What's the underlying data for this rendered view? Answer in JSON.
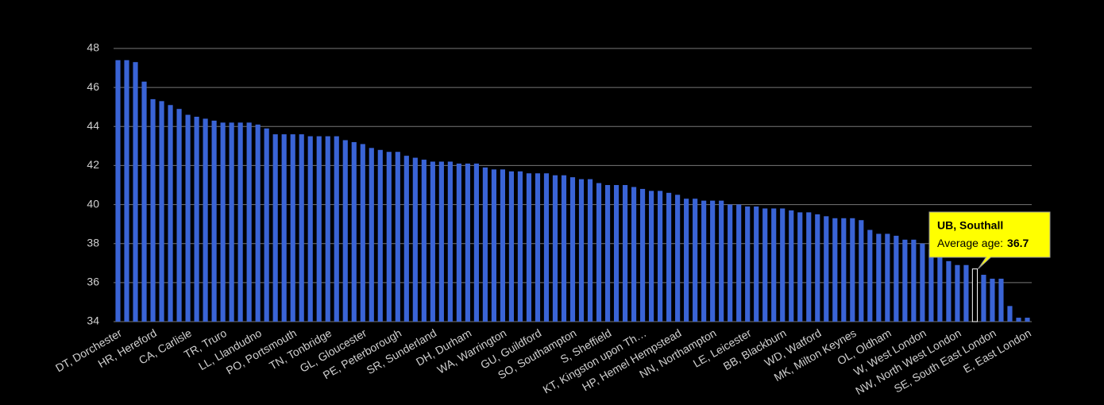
{
  "chart_data": {
    "type": "bar",
    "categories": [
      "DT, Dorchester",
      null,
      null,
      null,
      "HR, Hereford",
      null,
      null,
      null,
      "CA, Carlisle",
      null,
      null,
      null,
      "TR, Truro",
      null,
      null,
      null,
      "LL, Llandudno",
      null,
      null,
      null,
      "PO, Portsmouth",
      null,
      null,
      null,
      "TN, Tonbridge",
      null,
      null,
      null,
      "GL, Gloucester",
      null,
      null,
      null,
      "PE, Peterborough",
      null,
      null,
      null,
      "SR, Sunderland",
      null,
      null,
      null,
      "DH, Durham",
      null,
      null,
      null,
      "WA, Warrington",
      null,
      null,
      null,
      "GU, Guildford",
      null,
      null,
      null,
      "SO, Southampton",
      null,
      null,
      null,
      "S, Sheffield",
      null,
      null,
      null,
      "KT, Kingston upon Th…",
      null,
      null,
      null,
      "HP, Hemel Hempstead",
      null,
      null,
      null,
      "NN, Northampton",
      null,
      null,
      null,
      "LE, Leicester",
      null,
      null,
      null,
      "BB, Blackburn",
      null,
      null,
      null,
      "WD, Watford",
      null,
      null,
      null,
      "MK, Milton Keynes",
      null,
      null,
      null,
      "OL, Oldham",
      null,
      null,
      null,
      "W, West London",
      null,
      null,
      null,
      "NW, North West London",
      null,
      null,
      null,
      "SE, South East London",
      null,
      null,
      null,
      "E, East London"
    ],
    "values": [
      47.4,
      47.4,
      47.3,
      46.3,
      45.4,
      45.3,
      45.1,
      44.9,
      44.6,
      44.5,
      44.4,
      44.3,
      44.2,
      44.2,
      44.2,
      44.2,
      44.1,
      43.9,
      43.6,
      43.6,
      43.6,
      43.6,
      43.5,
      43.5,
      43.5,
      43.5,
      43.3,
      43.2,
      43.1,
      42.9,
      42.8,
      42.7,
      42.7,
      42.5,
      42.4,
      42.3,
      42.2,
      42.2,
      42.2,
      42.1,
      42.1,
      42.1,
      41.9,
      41.8,
      41.8,
      41.7,
      41.7,
      41.6,
      41.6,
      41.6,
      41.5,
      41.5,
      41.4,
      41.3,
      41.3,
      41.1,
      41.0,
      41.0,
      41.0,
      40.9,
      40.8,
      40.7,
      40.7,
      40.6,
      40.5,
      40.3,
      40.3,
      40.2,
      40.2,
      40.2,
      40.0,
      40.0,
      39.9,
      39.9,
      39.8,
      39.8,
      39.8,
      39.7,
      39.6,
      39.6,
      39.5,
      39.4,
      39.3,
      39.3,
      39.3,
      39.2,
      38.7,
      38.5,
      38.5,
      38.4,
      38.2,
      38.2,
      38.0,
      37.7,
      37.3,
      37.1,
      36.9,
      36.9,
      36.7,
      36.4,
      36.2,
      36.2,
      34.8,
      34.2,
      34.2
    ],
    "color": "#3a64d6",
    "ylim": [
      34,
      48
    ],
    "yticks": [
      34,
      36,
      38,
      40,
      42,
      44,
      46,
      48
    ],
    "grid": true,
    "highlight_index": 98,
    "tooltip": {
      "category": "UB, Southall",
      "label": "Average age:"
    }
  }
}
